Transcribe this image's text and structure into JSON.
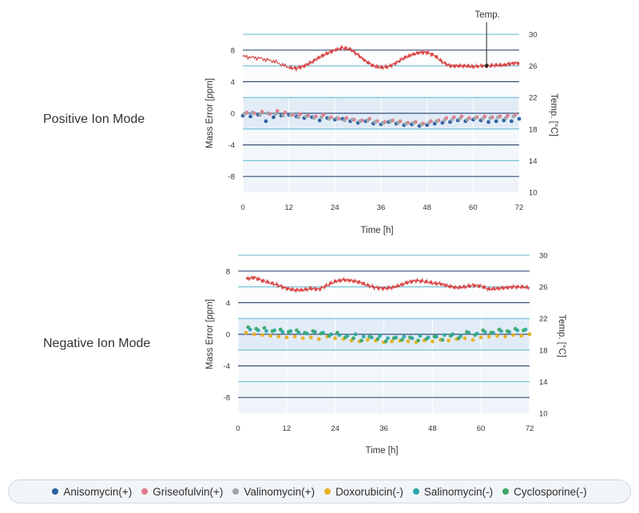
{
  "chart_data": [
    {
      "type": "scatter",
      "title": "Positive Ion Mode",
      "xlabel": "Time [h]",
      "ylabel": "Mass Error [ppm]",
      "y2label": "Temp. [°C]",
      "annotation": "Temp.",
      "x_ticks": [
        "0",
        "12",
        "24",
        "36",
        "48",
        "60",
        "72"
      ],
      "y_ticks": [
        "8",
        "4",
        "0",
        "-4",
        "-8"
      ],
      "y2_ticks": [
        "30",
        "26",
        "22",
        "18",
        "14",
        "10"
      ],
      "xlim": [
        0,
        72
      ],
      "ylim": [
        -10,
        10
      ],
      "y2lim": [
        10,
        30
      ],
      "grid": true,
      "temperature": {
        "name": "Temp.",
        "color": "#d93a3a",
        "x": [
          0,
          4,
          8,
          12,
          14,
          16,
          18,
          20,
          22,
          24,
          26,
          28,
          30,
          32,
          34,
          36,
          38,
          40,
          42,
          44,
          46,
          48,
          50,
          52,
          54,
          56,
          58,
          60,
          62,
          64,
          66,
          68,
          70,
          72
        ],
        "y": [
          27.2,
          27.0,
          26.6,
          25.8,
          25.7,
          26.0,
          26.5,
          27.1,
          27.6,
          28.0,
          28.3,
          28.1,
          27.4,
          26.6,
          26.0,
          25.8,
          25.9,
          26.4,
          27.0,
          27.4,
          27.7,
          27.7,
          27.3,
          26.5,
          26.0,
          26.0,
          26.0,
          25.9,
          26.0,
          26.0,
          26.1,
          26.1,
          26.3,
          26.4
        ]
      },
      "series": [
        {
          "name": "Anisomycin(+)",
          "color": "#2b5fa0",
          "x": [
            0,
            2,
            4,
            6,
            8,
            10,
            12,
            14,
            16,
            18,
            20,
            22,
            24,
            26,
            28,
            30,
            32,
            34,
            36,
            38,
            40,
            42,
            44,
            46,
            48,
            50,
            52,
            54,
            56,
            58,
            60,
            62,
            64,
            66,
            68,
            70,
            72
          ],
          "y": [
            -0.3,
            -0.4,
            -0.2,
            -1.0,
            -0.5,
            -0.3,
            -0.2,
            -0.4,
            -0.6,
            -0.5,
            -0.9,
            -0.6,
            -0.8,
            -0.7,
            -1.0,
            -1.2,
            -1.0,
            -1.3,
            -1.4,
            -1.1,
            -1.3,
            -1.5,
            -1.4,
            -1.6,
            -1.5,
            -1.3,
            -1.2,
            -1.1,
            -0.9,
            -1.0,
            -0.8,
            -0.9,
            -1.1,
            -1.0,
            -0.9,
            -1.0,
            -0.7
          ]
        },
        {
          "name": "Griseofulvin(+)",
          "color": "#e07a8a",
          "x": [
            1,
            3,
            5,
            7,
            9,
            11,
            13,
            15,
            17,
            19,
            21,
            23,
            25,
            27,
            29,
            31,
            33,
            35,
            37,
            39,
            41,
            43,
            45,
            47,
            49,
            51,
            53,
            55,
            57,
            59,
            61,
            63,
            65,
            67,
            69,
            71
          ],
          "y": [
            0.1,
            0.0,
            0.2,
            -0.1,
            0.3,
            0.1,
            -0.2,
            -0.1,
            -0.3,
            -0.4,
            -0.2,
            -0.5,
            -0.7,
            -0.6,
            -0.8,
            -0.9,
            -0.7,
            -1.0,
            -1.1,
            -0.9,
            -1.0,
            -1.2,
            -1.1,
            -1.3,
            -1.0,
            -0.9,
            -0.6,
            -0.5,
            -0.4,
            -0.6,
            -0.5,
            -0.4,
            -0.5,
            -0.4,
            -0.3,
            -0.2
          ]
        },
        {
          "name": "Valinomycin(+)",
          "color": "#a0a4a8",
          "x": [
            0.5,
            2.5,
            4.5,
            6.5,
            8.5,
            10.5,
            12.5,
            14.5,
            16.5,
            18.5,
            20.5,
            22.5,
            24.5,
            26.5,
            28.5,
            30.5,
            32.5,
            34.5,
            36.5,
            38.5,
            40.5,
            42.5,
            44.5,
            46.5,
            48.5,
            50.5,
            52.5,
            54.5,
            56.5,
            58.5,
            60.5,
            62.5,
            64.5,
            66.5,
            68.5,
            70.5
          ],
          "y": [
            -0.1,
            0.1,
            -0.2,
            0.0,
            -0.1,
            -0.3,
            -0.2,
            -0.5,
            -0.4,
            -0.6,
            -0.5,
            -0.7,
            -0.6,
            -0.9,
            -0.8,
            -1.0,
            -0.9,
            -1.1,
            -1.2,
            -1.0,
            -1.2,
            -1.3,
            -1.2,
            -1.4,
            -1.2,
            -1.0,
            -0.9,
            -0.8,
            -0.7,
            -0.8,
            -0.6,
            -0.7,
            -0.6,
            -0.5,
            -0.6,
            -0.4
          ]
        }
      ]
    },
    {
      "type": "scatter",
      "title": "Negative Ion Mode",
      "xlabel": "Time [h]",
      "ylabel": "Mass Error [ppm]",
      "y2label": "Temp. [°C]",
      "x_ticks": [
        "0",
        "12",
        "24",
        "36",
        "48",
        "60",
        "72"
      ],
      "y_ticks": [
        "8",
        "4",
        "0",
        "-4",
        "-8"
      ],
      "y2_ticks": [
        "30",
        "26",
        "22",
        "18",
        "14",
        "10"
      ],
      "xlim": [
        0,
        72
      ],
      "ylim": [
        -10,
        10
      ],
      "y2lim": [
        10,
        30
      ],
      "grid": true,
      "temperature": {
        "name": "Temp.",
        "color": "#d93a3a",
        "x": [
          2,
          4,
          6,
          8,
          10,
          12,
          14,
          16,
          18,
          20,
          22,
          24,
          26,
          28,
          30,
          32,
          34,
          36,
          38,
          40,
          42,
          44,
          46,
          48,
          50,
          52,
          54,
          56,
          58,
          60,
          62,
          64,
          66,
          68,
          70,
          72
        ],
        "y": [
          27.0,
          27.2,
          26.8,
          26.5,
          26.2,
          25.8,
          25.6,
          25.6,
          25.8,
          25.7,
          26.2,
          26.7,
          26.9,
          26.8,
          26.6,
          26.2,
          25.9,
          25.8,
          25.9,
          26.2,
          26.6,
          26.8,
          26.7,
          26.5,
          26.4,
          26.1,
          25.9,
          26.0,
          26.2,
          26.1,
          25.7,
          25.8,
          25.9,
          26.0,
          26.0,
          25.9
        ]
      },
      "series": [
        {
          "name": "Doxorubicin(-)",
          "color": "#e6b020",
          "x": [
            2,
            4,
            6,
            8,
            10,
            12,
            14,
            16,
            18,
            20,
            22,
            24,
            26,
            28,
            30,
            32,
            34,
            36,
            38,
            40,
            42,
            44,
            46,
            48,
            50,
            52,
            54,
            56,
            58,
            60,
            62,
            64,
            66,
            68,
            70,
            72
          ],
          "y": [
            0.2,
            0.0,
            -0.1,
            -0.2,
            -0.3,
            -0.4,
            -0.3,
            -0.5,
            -0.4,
            -0.6,
            -0.3,
            -0.5,
            -0.6,
            -0.8,
            -0.9,
            -0.7,
            -0.8,
            -1.0,
            -0.9,
            -0.8,
            -0.9,
            -1.0,
            -0.8,
            -0.9,
            -0.7,
            -0.8,
            -0.6,
            -0.5,
            -0.7,
            -0.4,
            -0.3,
            -0.2,
            -0.3,
            -0.1,
            -0.2,
            0.0
          ]
        },
        {
          "name": "Salinomycin(-)",
          "color": "#2aa8a8",
          "x": [
            3,
            5,
            7,
            9,
            11,
            13,
            15,
            17,
            19,
            21,
            23,
            25,
            27,
            29,
            31,
            33,
            35,
            37,
            39,
            41,
            43,
            45,
            47,
            49,
            51,
            53,
            55,
            57,
            59,
            61,
            63,
            65,
            67,
            69,
            71
          ],
          "y": [
            0.6,
            0.5,
            0.4,
            0.5,
            0.3,
            0.4,
            0.2,
            0.1,
            0.3,
            0.2,
            0.0,
            -0.1,
            -0.2,
            0.0,
            -0.3,
            -0.4,
            -0.2,
            -0.5,
            -0.4,
            -0.3,
            -0.5,
            -0.2,
            -0.4,
            -0.3,
            -0.1,
            0.0,
            -0.2,
            0.2,
            0.1,
            0.3,
            0.2,
            0.4,
            0.3,
            0.5,
            0.6
          ]
        },
        {
          "name": "Cyclosporine(-)",
          "color": "#3aa86a",
          "x": [
            2.5,
            4.5,
            6.5,
            8.5,
            10.5,
            12.5,
            14.5,
            16.5,
            18.5,
            20.5,
            22.5,
            24.5,
            26.5,
            28.5,
            30.5,
            32.5,
            34.5,
            36.5,
            38.5,
            40.5,
            42.5,
            44.5,
            46.5,
            48.5,
            50.5,
            52.5,
            54.5,
            56.5,
            58.5,
            60.5,
            62.5,
            64.5,
            66.5,
            68.5,
            70.5
          ],
          "y": [
            0.9,
            0.7,
            0.8,
            0.4,
            0.6,
            0.3,
            0.5,
            0.2,
            0.4,
            0.1,
            -0.2,
            0.2,
            -0.4,
            -0.5,
            -0.8,
            -0.3,
            -0.6,
            -0.9,
            -0.5,
            -0.7,
            -0.4,
            -0.8,
            -0.6,
            -0.3,
            -0.7,
            -0.2,
            -0.5,
            0.3,
            -0.1,
            0.5,
            0.2,
            0.6,
            0.4,
            0.7,
            0.5
          ]
        }
      ]
    }
  ],
  "legend": [
    {
      "label": "Anisomycin(+)",
      "color": "#2b5fa0"
    },
    {
      "label": "Griseofulvin(+)",
      "color": "#e07a8a"
    },
    {
      "label": "Valinomycin(+)",
      "color": "#a0a4a8"
    },
    {
      "label": "Doxorubicin(-)",
      "color": "#e6b020"
    },
    {
      "label": "Salinomycin(-)",
      "color": "#2aa8a8"
    },
    {
      "label": "Cyclosporine(-)",
      "color": "#3aa86a"
    }
  ],
  "colors": {
    "band_shade": "#dde9f5",
    "plot_background": "#eef4fa",
    "grid_dark": "#3b4f7a",
    "grid_light": "#5cb7cf"
  }
}
